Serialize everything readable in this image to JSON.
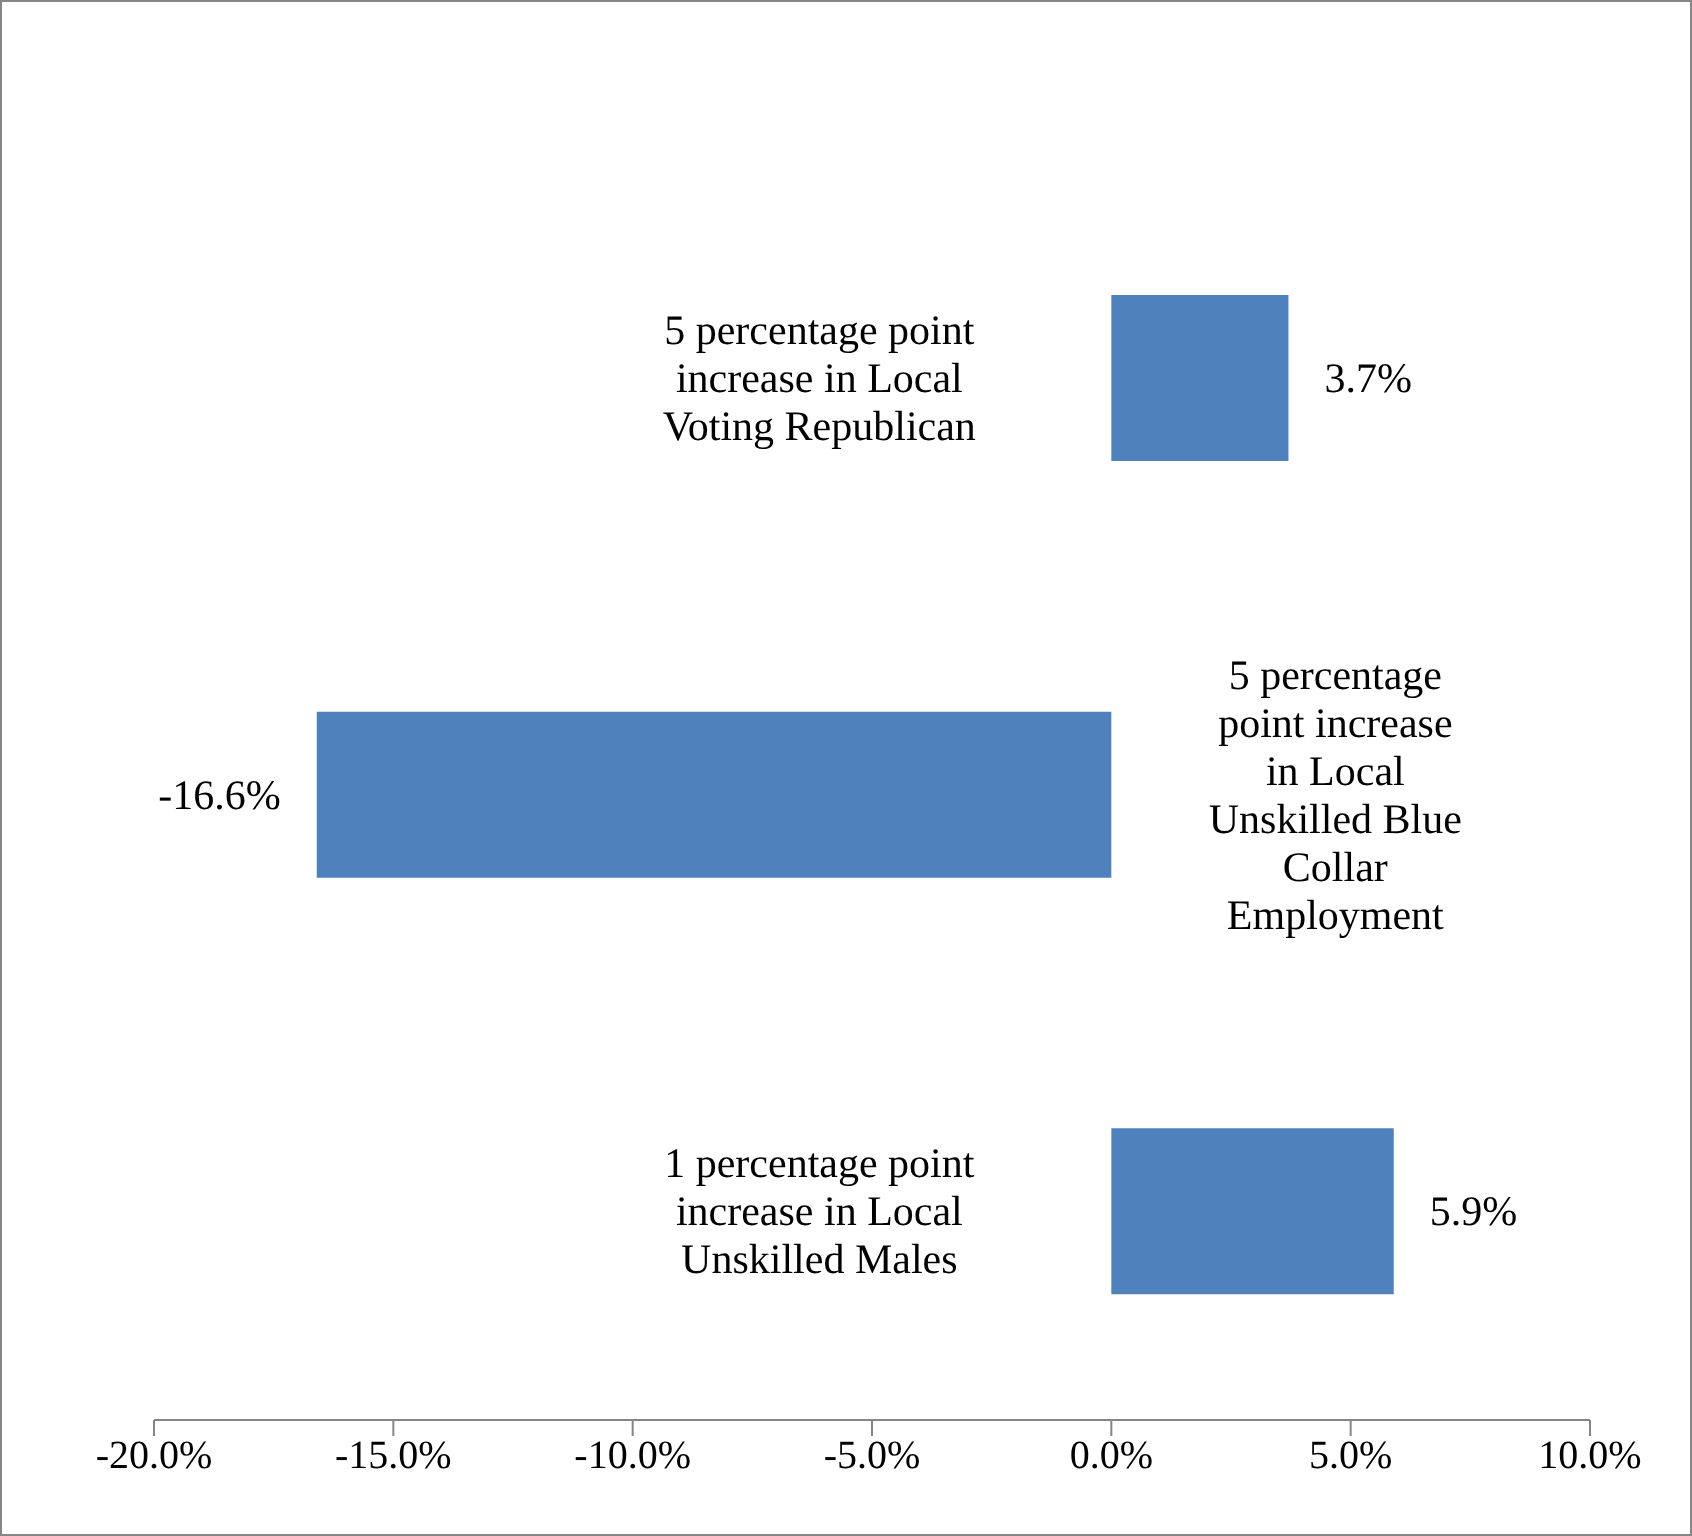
{
  "chart_data": {
    "type": "bar",
    "orientation": "horizontal",
    "categories": [
      "5 percentage point increase in Local Voting Republican",
      "5 percentage point increase in Local Unskilled Blue Collar Employment",
      "1 percentage point increase in Local Unskilled Males"
    ],
    "values": [
      3.7,
      -16.6,
      5.9
    ],
    "value_labels": [
      "3.7%",
      "-16.6%",
      "5.9%"
    ],
    "color": "#4f81bd",
    "xlim": [
      -20,
      10
    ],
    "xticks": [
      {
        "value": -20,
        "label": "-20.0%"
      },
      {
        "value": -15,
        "label": "-15.0%"
      },
      {
        "value": -10,
        "label": "-10.0%"
      },
      {
        "value": -5,
        "label": "-5.0%"
      },
      {
        "value": 0,
        "label": "0.0%"
      },
      {
        "value": 5,
        "label": "5.0%"
      },
      {
        "value": 10,
        "label": "10.0%"
      }
    ]
  }
}
